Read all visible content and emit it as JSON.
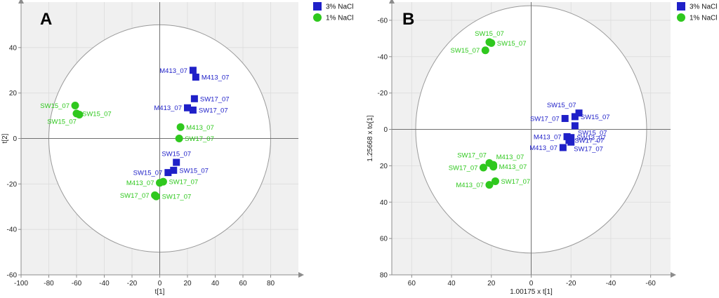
{
  "chart_data": [
    {
      "type": "scatter",
      "panel": "A",
      "title": "",
      "xlabel": "t[1]",
      "ylabel": "t[2]",
      "xlim": [
        -100,
        100
      ],
      "ylim": [
        -60,
        60
      ],
      "xticks": [
        -100,
        -80,
        -60,
        -40,
        -20,
        0,
        20,
        40,
        60,
        80
      ],
      "yticks": [
        -60,
        -40,
        -20,
        0,
        20,
        40
      ],
      "y_inverted": false,
      "x_inverted": false,
      "ellipse": {
        "rx": 80,
        "ry": 50
      },
      "legend": [
        {
          "name": "3% NaCl",
          "color": "#1f20c8",
          "marker": "square"
        },
        {
          "name": "1% NaCl",
          "color": "#2fc81e",
          "marker": "circle"
        }
      ],
      "series": [
        {
          "name": "3% NaCl",
          "color": "#1f20c8",
          "marker": "square",
          "points": [
            {
              "x": 24,
              "y": 30,
              "label": "M413_07",
              "pos": "left"
            },
            {
              "x": 26,
              "y": 27,
              "label": "M413_07",
              "pos": "right"
            },
            {
              "x": 25,
              "y": 17.5,
              "label": "SW17_07",
              "pos": "right"
            },
            {
              "x": 20,
              "y": 13.5,
              "label": "M413_07",
              "pos": "left"
            },
            {
              "x": 24,
              "y": 12.5,
              "label": "SW17_07",
              "pos": "right"
            },
            {
              "x": 12,
              "y": -10.5,
              "label": "SW15_07",
              "pos": "above"
            },
            {
              "x": 10,
              "y": -14,
              "label": "SW15_07",
              "pos": "right"
            },
            {
              "x": 6,
              "y": -15,
              "label": "SW15_07",
              "pos": "left"
            }
          ]
        },
        {
          "name": "1% NaCl",
          "color": "#2fc81e",
          "marker": "circle",
          "points": [
            {
              "x": -61,
              "y": 14.5,
              "label": "SW15_07",
              "pos": "left"
            },
            {
              "x": -60,
              "y": 11,
              "label": "SW15_07",
              "pos": "right"
            },
            {
              "x": -58,
              "y": 10.5,
              "label": "SW15_07",
              "pos": "belowleft"
            },
            {
              "x": 15,
              "y": 5,
              "label": "M413_07",
              "pos": "right"
            },
            {
              "x": 14,
              "y": 0,
              "label": "SW17_07",
              "pos": "right"
            },
            {
              "x": 0,
              "y": -19.5,
              "label": "M413_07",
              "pos": "left"
            },
            {
              "x": 2.5,
              "y": -19,
              "label": "SW17_07",
              "pos": "right"
            },
            {
              "x": -3.5,
              "y": -25,
              "label": "SW17_07",
              "pos": "left"
            },
            {
              "x": -2.5,
              "y": -25.5,
              "label": "SW17_07",
              "pos": "right"
            }
          ]
        }
      ]
    },
    {
      "type": "scatter",
      "panel": "B",
      "title": "",
      "xlabel": "1.00175 x t[1]",
      "ylabel": "1.25668 x to[1]",
      "xlim": [
        70,
        -70
      ],
      "ylim": [
        -70,
        80
      ],
      "xticks": [
        60,
        40,
        20,
        0,
        -20,
        -40,
        -60
      ],
      "yticks": [
        -60,
        -40,
        -20,
        0,
        20,
        40,
        60,
        80
      ],
      "x_inverted": true,
      "y_inverted": true,
      "ellipse": {
        "rx": 58,
        "ry": 68
      },
      "legend": [
        {
          "name": "3% NaCl",
          "color": "#1f20c8",
          "marker": "square"
        },
        {
          "name": "1% NaCl",
          "color": "#2fc81e",
          "marker": "circle"
        }
      ],
      "series": [
        {
          "name": "3% NaCl",
          "color": "#1f20c8",
          "marker": "square",
          "points": [
            {
              "x": -24,
              "y": -9,
              "label": "SW15_07",
              "pos": "aboveleft"
            },
            {
              "x": -22,
              "y": -7,
              "label": "SW15_07",
              "pos": "right"
            },
            {
              "x": -17,
              "y": -6,
              "label": "SW17_07",
              "pos": "left"
            },
            {
              "x": -22,
              "y": -2,
              "label": "SW15_07",
              "pos": "belowright"
            },
            {
              "x": -18,
              "y": 4,
              "label": "M413_07",
              "pos": "left"
            },
            {
              "x": -20,
              "y": 4.5,
              "label": "SW13_07",
              "pos": "right"
            },
            {
              "x": -19,
              "y": 6,
              "label": "SW17_07",
              "pos": "right"
            },
            {
              "x": -16,
              "y": 10,
              "label": "M413_07",
              "pos": "left"
            },
            {
              "x": -20,
              "y": 7,
              "label": "SW17_07",
              "pos": "belowright"
            }
          ]
        },
        {
          "name": "1% NaCl",
          "color": "#2fc81e",
          "marker": "circle",
          "points": [
            {
              "x": 21,
              "y": -48,
              "label": "SW15_07",
              "pos": "above"
            },
            {
              "x": 20,
              "y": -47.5,
              "label": "SW15_07",
              "pos": "right"
            },
            {
              "x": 23,
              "y": -43.5,
              "label": "SW15_07",
              "pos": "left"
            },
            {
              "x": 21,
              "y": 18.5,
              "label": "SW17_07",
              "pos": "aboveleft"
            },
            {
              "x": 19,
              "y": 19.5,
              "label": "M413_07",
              "pos": "aboveright"
            },
            {
              "x": 24,
              "y": 21,
              "label": "SW17_07",
              "pos": "left"
            },
            {
              "x": 19,
              "y": 20.5,
              "label": "M413_07",
              "pos": "right"
            },
            {
              "x": 18,
              "y": 28.5,
              "label": "SW17_07",
              "pos": "right"
            },
            {
              "x": 21,
              "y": 30.5,
              "label": "M413_07",
              "pos": "left"
            }
          ]
        }
      ]
    }
  ]
}
